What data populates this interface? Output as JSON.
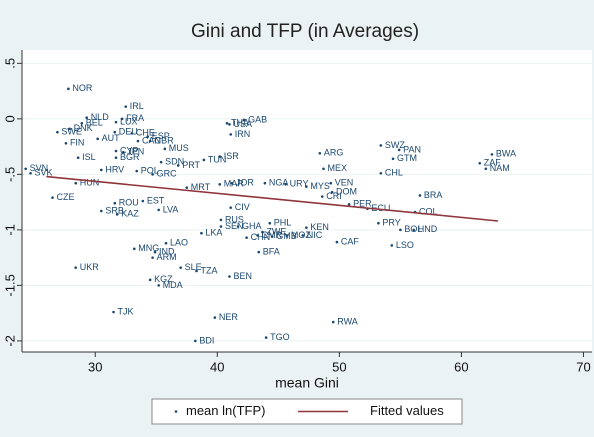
{
  "chart_data": {
    "type": "scatter",
    "title": "Gini and TFP (in Averages)",
    "xlabel": "mean Gini",
    "xlim": [
      24,
      70.7
    ],
    "ylim": [
      -2.1,
      0.62
    ],
    "xticks": [
      30,
      40,
      50,
      60,
      70
    ],
    "yticks": [
      {
        "value": 0.5,
        "label": ".5"
      },
      0,
      {
        "value": -0.5,
        "label": "-.5"
      },
      -1,
      -1.5,
      -2
    ],
    "grid": true,
    "series": [
      {
        "name": "mean ln(TFP)",
        "color": "#1a476f",
        "type": "scatter",
        "labels": [
          "NOR",
          "IRL",
          "NLD",
          "BEL",
          "LUX",
          "FRA",
          "DNK",
          "SWE",
          "FIN",
          "DEU",
          "CHE",
          "AUT",
          "ESP",
          "CAN",
          "GBR",
          "THA",
          "USA",
          "GAB",
          "IRN",
          "CYP",
          "JPN",
          "MUS",
          "ISL",
          "BGR",
          "SDN",
          "PRT",
          "TUN",
          "ISR",
          "SVN",
          "SVK",
          "HRV",
          "POL",
          "GRC",
          "HUN",
          "CZE",
          "MRT",
          "MAR",
          "JOR",
          "NGA",
          "URY",
          "MYS",
          "VEN",
          "DOM",
          "CRI",
          "ARG",
          "MEX",
          "SWZ",
          "PAN",
          "GTM",
          "CHL",
          "BWA",
          "ZAF",
          "NAM",
          "BRA",
          "PER",
          "ECU",
          "COL",
          "PRY",
          "BOL",
          "HND",
          "LSO",
          "ROU",
          "EST",
          "SRB",
          "KAZ",
          "LVA",
          "CIV",
          "RUS",
          "SEN",
          "GHA",
          "LKA",
          "PHL",
          "ZWE",
          "CHN",
          "CMR",
          "GMB",
          "MOZ",
          "NIC",
          "KEN",
          "CAF",
          "BFA",
          "MNG",
          "IND",
          "ARM",
          "LAO",
          "UKR",
          "SLE",
          "TZA",
          "BEN",
          "KGZ",
          "MDA",
          "TJK",
          "NER",
          "RWA",
          "TGO",
          "BDI"
        ],
        "x": [
          27.8,
          32.5,
          29.3,
          28.9,
          31.7,
          32.2,
          27.9,
          26.9,
          27.6,
          31.6,
          33.0,
          30.2,
          34.3,
          33.5,
          34.5,
          40.8,
          41.0,
          42.2,
          41.1,
          31.7,
          32.3,
          35.7,
          28.6,
          31.7,
          35.4,
          36.8,
          38.9,
          40.2,
          24.3,
          24.7,
          30.5,
          33.4,
          34.7,
          28.4,
          26.5,
          37.5,
          40.2,
          41.2,
          43.9,
          45.6,
          47.3,
          49.3,
          49.4,
          48.6,
          48.4,
          48.7,
          53.4,
          54.9,
          54.4,
          53.4,
          62.5,
          61.5,
          62.0,
          56.6,
          50.8,
          52.3,
          56.2,
          53.2,
          55.0,
          56.1,
          54.3,
          31.6,
          33.9,
          30.5,
          31.8,
          35.2,
          41.1,
          40.3,
          40.3,
          41.7,
          38.7,
          44.3,
          43.7,
          42.4,
          43.3,
          44.5,
          45.7,
          47.0,
          47.3,
          49.8,
          43.4,
          33.2,
          34.9,
          34.7,
          35.8,
          28.4,
          37.0,
          38.3,
          41.0,
          34.5,
          35.2,
          31.5,
          39.8,
          49.5,
          44.0,
          38.2
        ],
        "values": [
          0.27,
          0.11,
          0.01,
          -0.04,
          -0.03,
          0.0,
          -0.09,
          -0.12,
          -0.22,
          -0.12,
          -0.13,
          -0.18,
          -0.16,
          -0.2,
          -0.2,
          -0.04,
          -0.05,
          -0.01,
          -0.14,
          -0.29,
          -0.3,
          -0.27,
          -0.35,
          -0.35,
          -0.39,
          -0.42,
          -0.37,
          -0.34,
          -0.45,
          -0.49,
          -0.46,
          -0.47,
          -0.5,
          -0.58,
          -0.71,
          -0.62,
          -0.59,
          -0.58,
          -0.58,
          -0.59,
          -0.61,
          -0.58,
          -0.66,
          -0.7,
          -0.31,
          -0.45,
          -0.24,
          -0.28,
          -0.36,
          -0.49,
          -0.32,
          -0.4,
          -0.45,
          -0.69,
          -0.77,
          -0.81,
          -0.84,
          -0.94,
          -1.0,
          -1.0,
          -1.14,
          -0.76,
          -0.74,
          -0.83,
          -0.86,
          -0.82,
          -0.8,
          -0.91,
          -0.97,
          -0.97,
          -1.03,
          -0.94,
          -1.02,
          -1.07,
          -1.05,
          -1.06,
          -1.05,
          -1.05,
          -0.98,
          -1.11,
          -1.2,
          -1.17,
          -1.2,
          -1.25,
          -1.12,
          -1.34,
          -1.34,
          -1.37,
          -1.42,
          -1.45,
          -1.5,
          -1.74,
          -1.79,
          -1.83,
          -1.97,
          -2.0
        ]
      },
      {
        "name": "Fitted values",
        "color": "#90353b",
        "type": "line",
        "x": [
          26,
          63
        ],
        "values": [
          -0.52,
          -0.92
        ]
      }
    ]
  }
}
